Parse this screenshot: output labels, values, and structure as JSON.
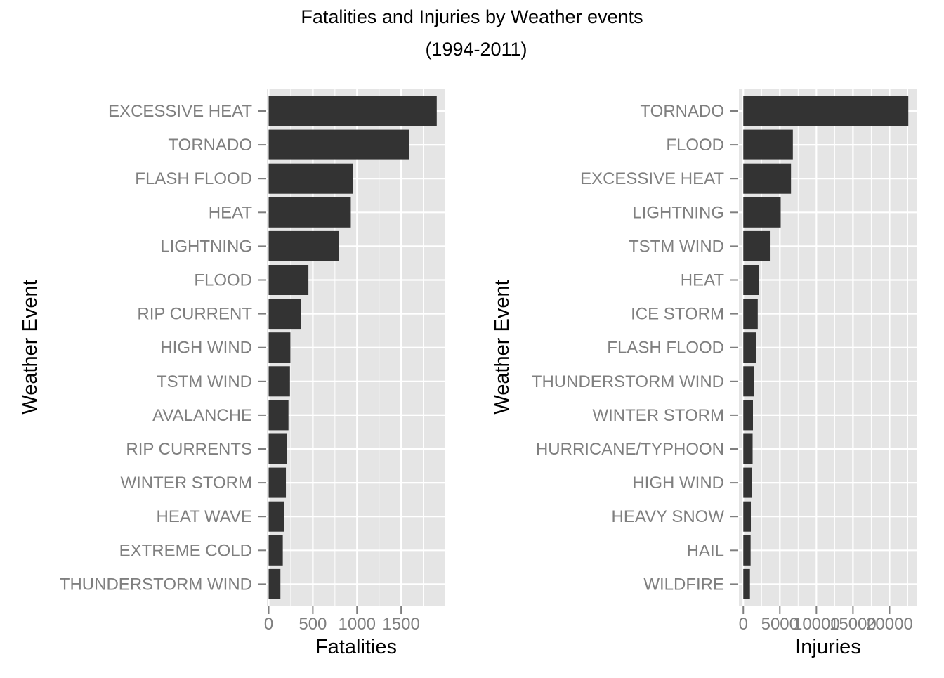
{
  "figure": {
    "title_line1": "Fatalities and Injuries by Weather events",
    "title_line2": "(1994-2011)"
  },
  "colors": {
    "panel_background": "#e5e5e5",
    "grid": "#ffffff",
    "bar_fill": "#333333",
    "tick_label": "#7f7f7f",
    "tick_mark": "#7f7f7f",
    "text": "#000000"
  },
  "chart_data": [
    {
      "type": "bar",
      "orientation": "horizontal",
      "xlabel": "Fatalities",
      "ylabel": "Weather Event",
      "xlim": [
        -20,
        2000
      ],
      "x_ticks": [
        0,
        500,
        1000,
        1500
      ],
      "x_tick_labels": [
        "0",
        "500",
        "1000",
        "1500"
      ],
      "grid": true,
      "categories": [
        "EXCESSIVE HEAT",
        "TORNADO",
        "FLASH FLOOD",
        "HEAT",
        "LIGHTNING",
        "FLOOD",
        "RIP CURRENT",
        "HIGH WIND",
        "TSTM WIND",
        "AVALANCHE",
        "RIP CURRENTS",
        "WINTER STORM",
        "HEAT WAVE",
        "EXTREME COLD",
        "THUNDERSTORM WIND"
      ],
      "values": [
        1903,
        1593,
        951,
        930,
        794,
        450,
        368,
        246,
        241,
        224,
        204,
        195,
        172,
        160,
        133
      ]
    },
    {
      "type": "bar",
      "orientation": "horizontal",
      "xlabel": "Injuries",
      "ylabel": "Weather Event",
      "xlim": [
        -600,
        23800
      ],
      "x_ticks": [
        0,
        5000,
        10000,
        15000,
        20000
      ],
      "x_tick_labels": [
        "0",
        "5000",
        "10000",
        "15000",
        "20000"
      ],
      "grid": true,
      "categories": [
        "TORNADO",
        "FLOOD",
        "EXCESSIVE HEAT",
        "LIGHTNING",
        "TSTM WIND",
        "HEAT",
        "ICE STORM",
        "FLASH FLOOD",
        "THUNDERSTORM WIND",
        "WINTER STORM",
        "HURRICANE/TYPHOON",
        "HIGH WIND",
        "HEAVY SNOW",
        "HAIL",
        "WILDFIRE"
      ],
      "values": [
        22571,
        6779,
        6525,
        5116,
        3631,
        2100,
        1975,
        1777,
        1488,
        1321,
        1275,
        1137,
        1034,
        1000,
        911
      ]
    }
  ]
}
